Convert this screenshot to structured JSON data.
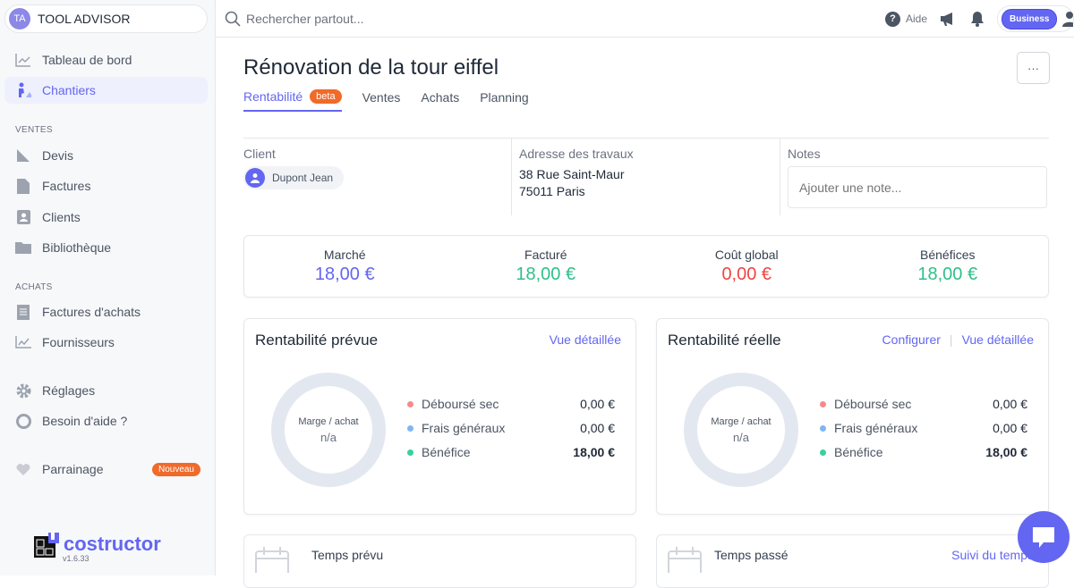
{
  "org": {
    "initials": "TA",
    "name": "TOOL ADVISOR"
  },
  "sidebar": {
    "items": [
      {
        "label": "Tableau de bord",
        "icon": "chart-line-icon"
      },
      {
        "label": "Chantiers",
        "icon": "worker-icon"
      }
    ],
    "sections": {
      "ventes": "VENTES",
      "achats": "ACHATS"
    },
    "ventes": [
      {
        "label": "Devis",
        "icon": "ruler-icon"
      },
      {
        "label": "Factures",
        "icon": "file-icon"
      },
      {
        "label": "Clients",
        "icon": "contact-book-icon"
      },
      {
        "label": "Bibliothèque",
        "icon": "folder-icon"
      }
    ],
    "achats": [
      {
        "label": "Factures d'achats",
        "icon": "receipt-icon"
      },
      {
        "label": "Fournisseurs",
        "icon": "chart-icon"
      }
    ],
    "bottom": [
      {
        "label": "Réglages",
        "icon": "gear-icon"
      },
      {
        "label": "Besoin d'aide ?",
        "icon": "help-icon"
      }
    ],
    "parrainage": {
      "label": "Parrainage",
      "badge": "Nouveau"
    },
    "brand": {
      "name": "costructor",
      "version": "v1.6.33"
    }
  },
  "topbar": {
    "search_placeholder": "Rechercher partout...",
    "help": "Aide",
    "plan": "Business"
  },
  "page": {
    "title": "Rénovation de la tour eiffel",
    "more": "···",
    "tabs": [
      {
        "label": "Rentabilité",
        "badge": "beta"
      },
      {
        "label": "Ventes"
      },
      {
        "label": "Achats"
      },
      {
        "label": "Planning"
      }
    ]
  },
  "info": {
    "client_label": "Client",
    "client": "Dupont Jean",
    "address_label": "Adresse des travaux",
    "address_line1": "38 Rue Saint-Maur",
    "address_line2": "75011 Paris",
    "notes_label": "Notes",
    "notes_placeholder": "Ajouter une note..."
  },
  "kpis": [
    {
      "label": "Marché",
      "value": "18,00 €",
      "color": "#6366f1"
    },
    {
      "label": "Facturé",
      "value": "18,00 €",
      "color": "#2fbf8a"
    },
    {
      "label": "Coût global",
      "value": "0,00 €",
      "color": "#ef4444"
    },
    {
      "label": "Bénéfices",
      "value": "18,00 €",
      "color": "#2fbf8a"
    }
  ],
  "prevue": {
    "title": "Rentabilité prévue",
    "link": "Vue détaillée",
    "donut_label": "Marge / achat",
    "donut_value": "n/a",
    "legend": [
      {
        "label": "Déboursé sec",
        "value": "0,00 €",
        "color": "#f58b8b"
      },
      {
        "label": "Frais généraux",
        "value": "0,00 €",
        "color": "#7fb5f5"
      },
      {
        "label": "Bénéfice",
        "value": "18,00 €",
        "color": "#34d399"
      }
    ]
  },
  "reelle": {
    "title": "Rentabilité réelle",
    "link1": "Configurer",
    "link2": "Vue détaillée",
    "donut_label": "Marge / achat",
    "donut_value": "n/a",
    "legend": [
      {
        "label": "Déboursé sec",
        "value": "0,00 €",
        "color": "#f58b8b"
      },
      {
        "label": "Frais généraux",
        "value": "0,00 €",
        "color": "#7fb5f5"
      },
      {
        "label": "Bénéfice",
        "value": "18,00 €",
        "color": "#34d399"
      }
    ]
  },
  "temps": {
    "prevu": "Temps prévu",
    "passe": "Temps passé",
    "suivi": "Suivi du temps"
  }
}
